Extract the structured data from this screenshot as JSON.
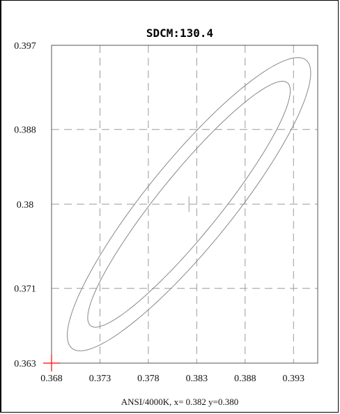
{
  "chart_data": {
    "type": "scatter",
    "title": "SDCM:130.4",
    "xlim": [
      0.368,
      0.3955
    ],
    "ylim": [
      0.363,
      0.397
    ],
    "x_ticks": [
      0.368,
      0.373,
      0.378,
      0.383,
      0.388,
      0.393
    ],
    "x_tick_labels": [
      "0.368",
      "0.373",
      "0.378",
      "0.383",
      "0.388",
      "0.393"
    ],
    "y_ticks": [
      0.397,
      0.388,
      0.38,
      0.371,
      0.363
    ],
    "y_tick_labels": [
      "0.397",
      "0.388",
      "0.38",
      "0.371",
      "0.363"
    ],
    "grid": true,
    "caption": "ANSI/4000K, x= 0.382 y=0.380",
    "center": {
      "x": 0.3822,
      "y": 0.38
    },
    "measured_point": {
      "x": 0.368,
      "y": 0.363,
      "color": "#ff0000"
    },
    "ellipses": [
      {
        "name": "outer",
        "cx": 0.3822,
        "cy": 0.38,
        "a": 0.0196,
        "b": 0.0045,
        "angle_deg": 52
      },
      {
        "name": "inner",
        "cx": 0.3822,
        "cy": 0.38,
        "a": 0.0165,
        "b": 0.0032,
        "angle_deg": 52
      }
    ],
    "colors": {
      "grid": "#9a9a9a",
      "ellipse": "#888888",
      "axis": "#000000"
    }
  }
}
